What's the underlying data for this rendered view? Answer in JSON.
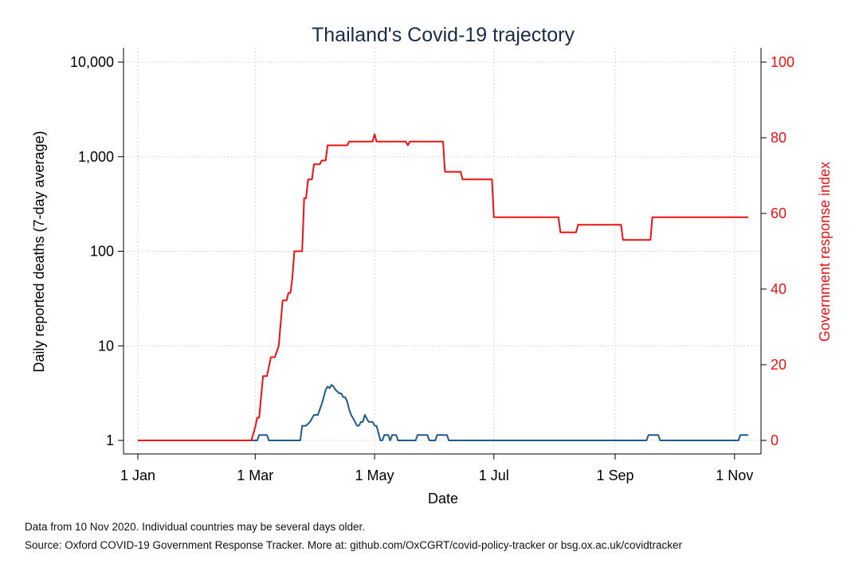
{
  "chart_data": {
    "type": "line",
    "title": "Thailand's Covid-19 trajectory",
    "xlabel": "Date",
    "ylabel_left": "Daily reported deaths (7-day average)",
    "ylabel_right": "Government response index",
    "x_ticks": [
      {
        "label": "1 Jan",
        "day": 0
      },
      {
        "label": "1 Mar",
        "day": 60
      },
      {
        "label": "1 May",
        "day": 121
      },
      {
        "label": "1 Jul",
        "day": 182
      },
      {
        "label": "1 Sep",
        "day": 244
      },
      {
        "label": "1 Nov",
        "day": 305
      }
    ],
    "x_range_days": [
      0,
      313
    ],
    "y_left": {
      "scale": "log",
      "range": [
        1,
        10000
      ],
      "ticks": [
        {
          "label": "1",
          "value": 1
        },
        {
          "label": "10",
          "value": 10
        },
        {
          "label": "100",
          "value": 100
        },
        {
          "label": "1,000",
          "value": 1000
        },
        {
          "label": "10,000",
          "value": 10000
        }
      ]
    },
    "y_right": {
      "scale": "linear",
      "range": [
        0,
        100
      ],
      "ticks": [
        {
          "label": "0",
          "value": 0
        },
        {
          "label": "20",
          "value": 20
        },
        {
          "label": "40",
          "value": 40
        },
        {
          "label": "60",
          "value": 60
        },
        {
          "label": "80",
          "value": 80
        },
        {
          "label": "100",
          "value": 100
        }
      ]
    },
    "grid": true,
    "colors": {
      "deaths": "#1f5a8a",
      "response": "#ee1111",
      "axis": "#000000",
      "grid": "#c8c8c8",
      "title": "#1a2a4a"
    },
    "series": [
      {
        "axis": "left",
        "points": [
          [
            0,
            1
          ],
          [
            61,
            1
          ],
          [
            62,
            1.14
          ],
          [
            66,
            1.14
          ],
          [
            67,
            1
          ],
          [
            83,
            1
          ],
          [
            84,
            1.43
          ],
          [
            86,
            1.43
          ],
          [
            88,
            1.57
          ],
          [
            90,
            1.86
          ],
          [
            92,
            1.86
          ],
          [
            94,
            2.43
          ],
          [
            95,
            2.86
          ],
          [
            96,
            3.43
          ],
          [
            97,
            3.71
          ],
          [
            98,
            3.57
          ],
          [
            99,
            3.86
          ],
          [
            100,
            3.71
          ],
          [
            101,
            3.43
          ],
          [
            102,
            3.29
          ],
          [
            103,
            3.14
          ],
          [
            104,
            3.14
          ],
          [
            105,
            2.86
          ],
          [
            106,
            2.86
          ],
          [
            107,
            2.57
          ],
          [
            108,
            2.14
          ],
          [
            109,
            1.86
          ],
          [
            110,
            1.71
          ],
          [
            111,
            1.57
          ],
          [
            112,
            1.43
          ],
          [
            113,
            1.43
          ],
          [
            114,
            1.57
          ],
          [
            115,
            1.57
          ],
          [
            116,
            1.86
          ],
          [
            117,
            1.71
          ],
          [
            118,
            1.57
          ],
          [
            120,
            1.57
          ],
          [
            121,
            1.43
          ],
          [
            122,
            1.43
          ],
          [
            124,
            1
          ],
          [
            125,
            1
          ],
          [
            126,
            1.14
          ],
          [
            128,
            1.14
          ],
          [
            129,
            1
          ],
          [
            130,
            1.14
          ],
          [
            132,
            1.14
          ],
          [
            133,
            1
          ],
          [
            142,
            1
          ],
          [
            143,
            1.14
          ],
          [
            148,
            1.14
          ],
          [
            149,
            1
          ],
          [
            152,
            1
          ],
          [
            153,
            1.14
          ],
          [
            158,
            1.14
          ],
          [
            159,
            1
          ],
          [
            260,
            1
          ],
          [
            261,
            1.14
          ],
          [
            266,
            1.14
          ],
          [
            267,
            1
          ],
          [
            307,
            1
          ],
          [
            308,
            1.14
          ],
          [
            312,
            1.14
          ]
        ]
      },
      {
        "axis": "right",
        "points": [
          [
            0,
            0
          ],
          [
            58,
            0
          ],
          [
            60,
            3.5
          ],
          [
            61,
            6
          ],
          [
            62,
            6
          ],
          [
            64,
            17
          ],
          [
            66,
            17
          ],
          [
            68,
            22
          ],
          [
            70,
            22
          ],
          [
            72,
            25
          ],
          [
            74,
            37
          ],
          [
            76,
            37
          ],
          [
            77,
            39
          ],
          [
            78,
            39
          ],
          [
            79,
            43
          ],
          [
            80,
            50
          ],
          [
            84,
            50
          ],
          [
            85,
            64
          ],
          [
            86,
            64
          ],
          [
            87,
            69
          ],
          [
            89,
            69
          ],
          [
            90,
            73
          ],
          [
            93,
            73
          ],
          [
            94,
            74
          ],
          [
            96,
            74
          ],
          [
            97,
            78
          ],
          [
            107,
            78
          ],
          [
            108,
            79
          ],
          [
            120,
            79
          ],
          [
            121,
            81
          ],
          [
            122,
            79
          ],
          [
            137,
            79
          ],
          [
            138,
            78
          ],
          [
            139,
            79
          ],
          [
            156,
            79
          ],
          [
            157,
            71
          ],
          [
            165,
            71
          ],
          [
            166,
            69
          ],
          [
            181,
            69
          ],
          [
            182,
            59
          ],
          [
            215,
            59
          ],
          [
            216,
            55
          ],
          [
            224,
            55
          ],
          [
            225,
            57
          ],
          [
            247,
            57
          ],
          [
            248,
            53
          ],
          [
            262,
            53
          ],
          [
            263,
            59
          ],
          [
            312,
            59
          ]
        ]
      }
    ]
  },
  "notes": {
    "line1": "Data from 10 Nov 2020. Individual countries may be several days older.",
    "line2": "Source: Oxford COVID-19 Government Response Tracker. More at: github.com/OxCGRT/covid-policy-tracker or bsg.ox.ac.uk/covidtracker"
  }
}
